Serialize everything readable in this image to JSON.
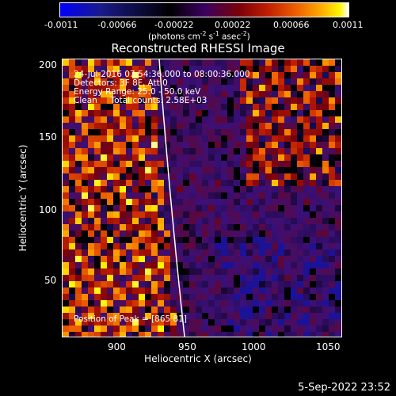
{
  "colorbar": {
    "tick_labels": [
      "-0.0011",
      "-0.00066",
      "-0.00022",
      "0.00022",
      "0.00066",
      "0.0011"
    ],
    "unit_label": "(photons cm-2 s-1 asec-2)"
  },
  "plot": {
    "title": "Reconstructed RHESSI Image",
    "info_lines": [
      "24-Jul-2016 07:54:36.000 to 08:00:36.000",
      "Detectors: 3F 8F, Att 0",
      "Energy Range: 25.0 - 50.0 keV",
      "Clean     Total counts: 2.58E+03"
    ],
    "peak_label": "Position of Peak = [865 81]",
    "x_axis": {
      "label": "Heliocentric X (arcsec)",
      "ticks": [
        "900",
        "950",
        "1000",
        "1050"
      ],
      "range": [
        862,
        1054
      ]
    },
    "y_axis": {
      "label": "Heliocentric Y (arcsec)",
      "ticks": [
        "50",
        "100",
        "150",
        "200"
      ],
      "range": [
        10,
        205
      ]
    },
    "limb_color": "#ffffff"
  },
  "footer": {
    "timestamp": "5-Sep-2022 23:52"
  }
}
